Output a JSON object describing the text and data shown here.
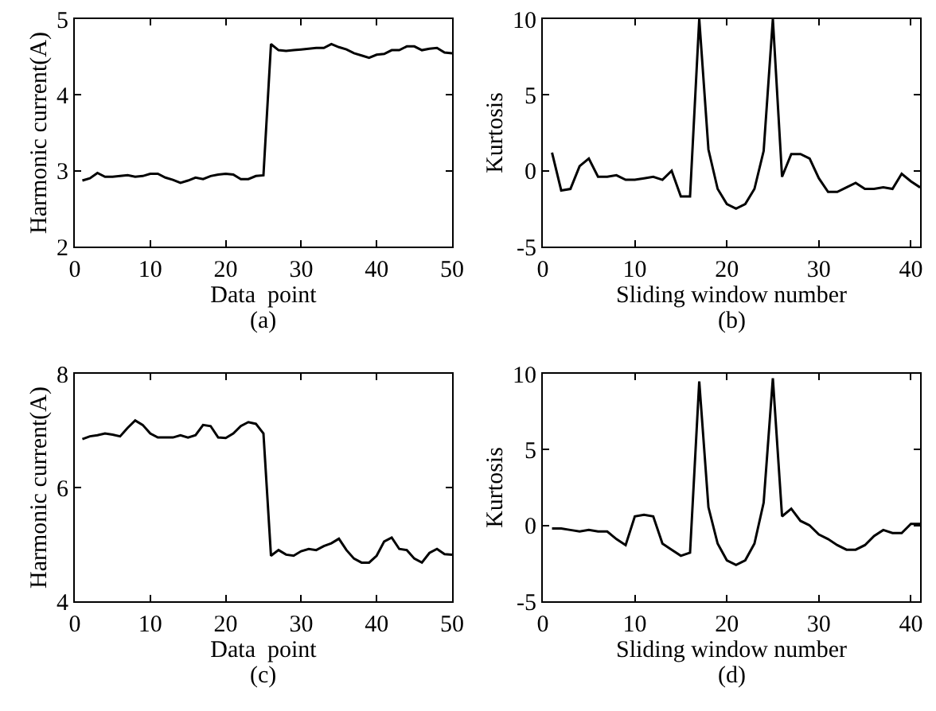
{
  "chart_data": [
    {
      "type": "line",
      "xlabel": "Data  point",
      "ylabel": "Harmonic current(A)",
      "annotations": [
        "(a)"
      ],
      "color": "#000000",
      "xlim": [
        0,
        50
      ],
      "xticks": [
        0,
        10,
        20,
        30,
        40,
        50
      ],
      "ylim": [
        2,
        5
      ],
      "yticks": [
        2,
        3,
        4,
        5
      ],
      "grid": false,
      "legend": false,
      "marker": "none",
      "line_style": "solid",
      "x": [
        1,
        2,
        3,
        4,
        5,
        6,
        7,
        8,
        9,
        10,
        11,
        12,
        13,
        14,
        15,
        16,
        17,
        18,
        19,
        20,
        21,
        22,
        23,
        24,
        25,
        26,
        27,
        28,
        29,
        30,
        31,
        32,
        33,
        34,
        35,
        36,
        37,
        38,
        39,
        40,
        41,
        42,
        43,
        44,
        45,
        46,
        47,
        48,
        49,
        50
      ],
      "values": [
        2.87,
        2.9,
        2.97,
        2.92,
        2.92,
        2.93,
        2.94,
        2.92,
        2.93,
        2.96,
        2.96,
        2.91,
        2.88,
        2.84,
        2.87,
        2.91,
        2.89,
        2.93,
        2.95,
        2.96,
        2.95,
        2.89,
        2.89,
        2.93,
        2.94,
        4.67,
        4.59,
        4.58,
        4.59,
        4.6,
        4.61,
        4.62,
        4.62,
        4.67,
        4.63,
        4.6,
        4.55,
        4.52,
        4.49,
        4.53,
        4.54,
        4.59,
        4.59,
        4.64,
        4.64,
        4.59,
        4.61,
        4.62,
        4.56,
        4.55
      ]
    },
    {
      "type": "line",
      "xlabel": "Sliding window number",
      "ylabel": "Kurtosis",
      "annotations": [
        "(b)"
      ],
      "color": "#000000",
      "xlim": [
        0,
        41
      ],
      "xticks": [
        0,
        10,
        20,
        30,
        40
      ],
      "ylim": [
        -5,
        10
      ],
      "yticks": [
        -5,
        0,
        5,
        10
      ],
      "grid": false,
      "legend": false,
      "marker": "none",
      "line_style": "solid",
      "x": [
        1,
        2,
        3,
        4,
        5,
        6,
        7,
        8,
        9,
        10,
        11,
        12,
        13,
        14,
        15,
        16,
        17,
        18,
        19,
        20,
        21,
        22,
        23,
        24,
        25,
        26,
        27,
        28,
        29,
        30,
        31,
        32,
        33,
        34,
        35,
        36,
        37,
        38,
        39,
        40,
        41
      ],
      "values": [
        1.2,
        -1.3,
        -1.2,
        0.3,
        0.8,
        -0.4,
        -0.4,
        -0.3,
        -0.6,
        -0.6,
        -0.5,
        -0.4,
        -0.6,
        0,
        -1.7,
        -1.7,
        10,
        1.4,
        -1.2,
        -2.2,
        -2.5,
        -2.2,
        -1.2,
        1.3,
        10,
        -0.4,
        1.1,
        1.1,
        0.8,
        -0.5,
        -1.4,
        -1.4,
        -1.1,
        -0.8,
        -1.2,
        -1.2,
        -1.1,
        -1.2,
        -0.2,
        -0.7,
        -1.1
      ]
    },
    {
      "type": "line",
      "xlabel": "Data  point",
      "ylabel": "Harmonic current(A)",
      "annotations": [
        "(c)"
      ],
      "color": "#000000",
      "xlim": [
        0,
        50
      ],
      "xticks": [
        0,
        10,
        20,
        30,
        40,
        50
      ],
      "ylim": [
        4,
        8
      ],
      "yticks": [
        4,
        6,
        8
      ],
      "grid": false,
      "legend": false,
      "marker": "none",
      "line_style": "solid",
      "x": [
        1,
        2,
        3,
        4,
        5,
        6,
        7,
        8,
        9,
        10,
        11,
        12,
        13,
        14,
        15,
        16,
        17,
        18,
        19,
        20,
        21,
        22,
        23,
        24,
        25,
        26,
        27,
        28,
        29,
        30,
        31,
        32,
        33,
        34,
        35,
        36,
        37,
        38,
        39,
        40,
        41,
        42,
        43,
        44,
        45,
        46,
        47,
        48,
        49,
        50
      ],
      "values": [
        6.85,
        6.9,
        6.92,
        6.95,
        6.93,
        6.9,
        7.05,
        7.18,
        7.1,
        6.95,
        6.88,
        6.88,
        6.88,
        6.92,
        6.88,
        6.92,
        7.1,
        7.08,
        6.88,
        6.87,
        6.95,
        7.08,
        7.15,
        7.12,
        6.95,
        4.8,
        4.9,
        4.82,
        4.8,
        4.88,
        4.92,
        4.9,
        4.97,
        5.02,
        5.1,
        4.9,
        4.75,
        4.68,
        4.68,
        4.8,
        5.05,
        5.12,
        4.92,
        4.9,
        4.75,
        4.68,
        4.85,
        4.92,
        4.83,
        4.82
      ]
    },
    {
      "type": "line",
      "xlabel": "Sliding window number",
      "ylabel": "Kurtosis",
      "annotations": [
        "(d)"
      ],
      "color": "#000000",
      "xlim": [
        0,
        41
      ],
      "xticks": [
        0,
        10,
        20,
        30,
        40
      ],
      "ylim": [
        -5,
        10
      ],
      "yticks": [
        -5,
        0,
        5,
        10
      ],
      "grid": false,
      "legend": false,
      "marker": "none",
      "line_style": "solid",
      "x": [
        1,
        2,
        3,
        4,
        5,
        6,
        7,
        8,
        9,
        10,
        11,
        12,
        13,
        14,
        15,
        16,
        17,
        18,
        19,
        20,
        21,
        22,
        23,
        24,
        25,
        26,
        27,
        28,
        29,
        30,
        31,
        32,
        33,
        34,
        35,
        36,
        37,
        38,
        39,
        40,
        41
      ],
      "values": [
        -0.2,
        -0.2,
        -0.3,
        -0.4,
        -0.3,
        -0.4,
        -0.4,
        -0.9,
        -1.3,
        0.6,
        0.7,
        0.6,
        -1.2,
        -1.6,
        -2.0,
        -1.8,
        9.5,
        1.2,
        -1.2,
        -2.3,
        -2.6,
        -2.3,
        -1.2,
        1.5,
        9.7,
        0.6,
        1.1,
        0.3,
        0,
        -0.6,
        -0.9,
        -1.3,
        -1.6,
        -1.6,
        -1.3,
        -0.7,
        -0.3,
        -0.5,
        -0.5,
        0.1,
        0.1
      ]
    }
  ]
}
